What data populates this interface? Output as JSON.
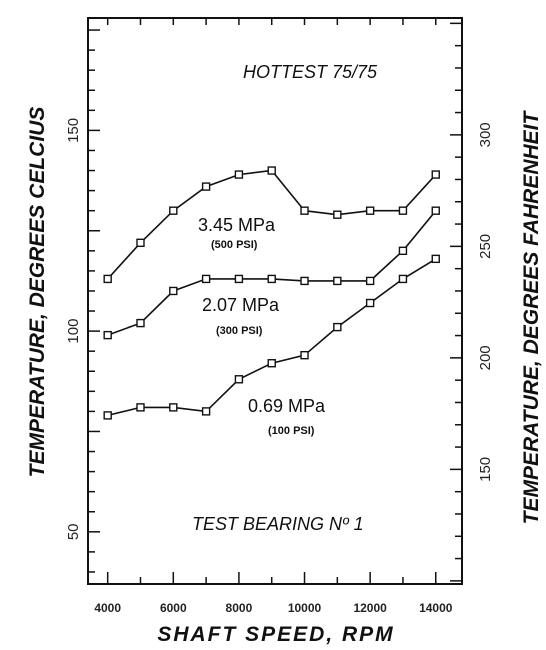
{
  "chart_data": {
    "type": "line",
    "title": "HOTTEST 75/75",
    "subtitle": "TEST BEARING Nº 1",
    "xlabel": "SHAFT SPEED, RPM",
    "ylabel": "TEMPERATURE, DEGREES CELCIUS",
    "y2label": "TEMPERATURE, DEGREES FAHRENHEIT",
    "xlim": [
      3400,
      14800
    ],
    "ylim": [
      37,
      178
    ],
    "y2lim": [
      98.6,
      352.4
    ],
    "x_ticks": [
      "4000",
      "6000",
      "8000",
      "10000",
      "12000",
      "14000"
    ],
    "y_ticks": [
      "50",
      "100",
      "150"
    ],
    "y2_ticks": [
      "150",
      "200",
      "250",
      "300"
    ],
    "grid": false,
    "x": [
      4000,
      5000,
      6000,
      7000,
      8000,
      9000,
      10000,
      11000,
      12000,
      13000,
      14000
    ],
    "series": [
      {
        "name": "3.45 MPa",
        "name_sub": "(500 PSI)",
        "values": [
          113,
          122,
          130,
          136,
          139,
          140,
          130,
          129,
          130,
          130,
          139
        ]
      },
      {
        "name": "2.07 MPa",
        "name_sub": "(300 PSI)",
        "values": [
          99,
          102,
          110,
          113,
          113,
          113,
          112.5,
          112.5,
          112.5,
          120,
          130
        ]
      },
      {
        "name": "0.69 MPa",
        "name_sub": "(100 PSI)",
        "values": [
          79,
          81,
          81,
          80,
          88,
          92,
          94,
          101,
          107,
          113,
          118
        ]
      }
    ]
  }
}
